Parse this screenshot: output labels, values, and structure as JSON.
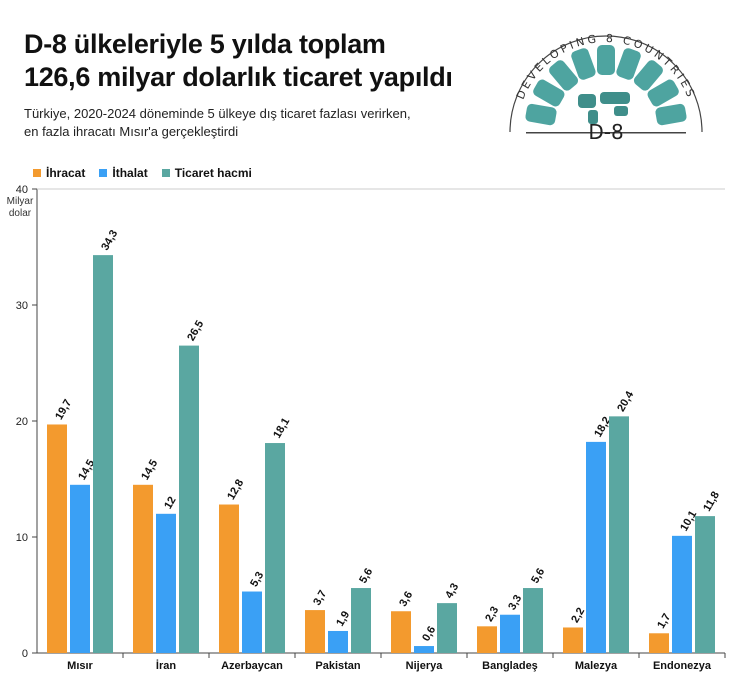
{
  "header": {
    "title_line1": "D-8 ülkeleriyle 5 yılda toplam",
    "title_line2": "126,6 milyar dolarlık ticaret yapıldı",
    "subtitle_line1": "Türkiye, 2020-2024 döneminde 5 ülkeye dış ticaret fazlası verirken,",
    "subtitle_line2": "en fazla ihracatı Mısır'a gerçekleştirdi"
  },
  "logo": {
    "text": "DEVELOPING 8 COUNTRIES",
    "mark": "D-8"
  },
  "chart_data": {
    "type": "bar",
    "title": "",
    "ylabel": "Milyar dolar",
    "ylim": [
      0,
      40
    ],
    "yticks": [
      0,
      10,
      20,
      30,
      40
    ],
    "grid": false,
    "legend": "top-left",
    "categories": [
      "Mısır",
      "İran",
      "Azerbaycan",
      "Pakistan",
      "Nijerya",
      "Bangladeş",
      "Malezya",
      "Endonezya"
    ],
    "series": [
      {
        "name": "İhracat",
        "color": "#f39a2e",
        "values": [
          19.7,
          14.5,
          12.8,
          3.7,
          3.6,
          2.3,
          2.2,
          1.7
        ],
        "labels": [
          "19,7",
          "14,5",
          "12,8",
          "3,7",
          "3,6",
          "2,3",
          "2,2",
          "1,7"
        ]
      },
      {
        "name": "İthalat",
        "color": "#3aa0f5",
        "values": [
          14.5,
          12,
          5.3,
          1.9,
          0.6,
          3.3,
          18.2,
          10.1
        ],
        "labels": [
          "14,5",
          "12",
          "5,3",
          "1,9",
          "0,6",
          "3,3",
          "18,2",
          "10,1"
        ]
      },
      {
        "name": "Ticaret hacmi",
        "color": "#5aa7a1",
        "values": [
          34.3,
          26.5,
          18.1,
          5.6,
          4.3,
          5.6,
          20.4,
          11.8
        ],
        "labels": [
          "34,3",
          "26,5",
          "18,1",
          "5,6",
          "4,3",
          "5,6",
          "20,4",
          "11,8"
        ]
      }
    ]
  }
}
